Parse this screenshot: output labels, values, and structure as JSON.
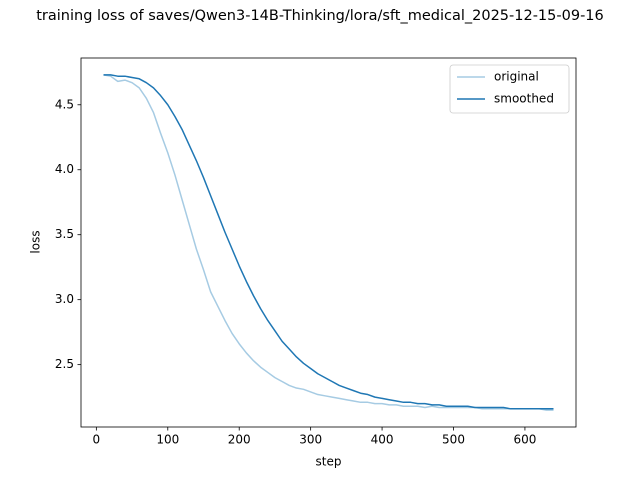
{
  "chart_data": {
    "type": "line",
    "title": "training loss of saves/Qwen3-14B-Thinking/lora/sft_medical_2025-12-15-09-16",
    "xlabel": "step",
    "ylabel": "loss",
    "x": [
      10,
      20,
      30,
      40,
      50,
      60,
      70,
      80,
      90,
      100,
      110,
      120,
      130,
      140,
      150,
      160,
      170,
      180,
      190,
      200,
      210,
      220,
      230,
      240,
      250,
      260,
      270,
      280,
      290,
      300,
      310,
      320,
      330,
      340,
      350,
      360,
      370,
      380,
      390,
      400,
      410,
      420,
      430,
      440,
      450,
      460,
      470,
      480,
      490,
      500,
      510,
      520,
      530,
      540,
      550,
      560,
      570,
      580,
      590,
      600,
      610,
      620,
      630,
      640
    ],
    "series": [
      {
        "name": "original",
        "color": "#a6cbe3",
        "values": [
          4.73,
          4.72,
          4.68,
          4.69,
          4.67,
          4.63,
          4.55,
          4.44,
          4.28,
          4.13,
          3.96,
          3.77,
          3.58,
          3.39,
          3.23,
          3.06,
          2.95,
          2.84,
          2.74,
          2.66,
          2.59,
          2.53,
          2.48,
          2.44,
          2.4,
          2.37,
          2.34,
          2.32,
          2.31,
          2.29,
          2.27,
          2.26,
          2.25,
          2.24,
          2.23,
          2.22,
          2.21,
          2.21,
          2.2,
          2.2,
          2.19,
          2.19,
          2.18,
          2.18,
          2.18,
          2.17,
          2.18,
          2.17,
          2.17,
          2.17,
          2.17,
          2.17,
          2.17,
          2.16,
          2.16,
          2.16,
          2.16,
          2.16,
          2.16,
          2.16,
          2.16,
          2.16,
          2.15,
          2.15
        ]
      },
      {
        "name": "smoothed",
        "color": "#1f77b4",
        "values": [
          4.73,
          4.73,
          4.72,
          4.72,
          4.71,
          4.7,
          4.67,
          4.63,
          4.57,
          4.5,
          4.41,
          4.31,
          4.19,
          4.07,
          3.94,
          3.8,
          3.66,
          3.52,
          3.39,
          3.26,
          3.14,
          3.03,
          2.93,
          2.84,
          2.76,
          2.68,
          2.62,
          2.56,
          2.51,
          2.47,
          2.43,
          2.4,
          2.37,
          2.34,
          2.32,
          2.3,
          2.28,
          2.27,
          2.25,
          2.24,
          2.23,
          2.22,
          2.21,
          2.21,
          2.2,
          2.2,
          2.19,
          2.19,
          2.18,
          2.18,
          2.18,
          2.18,
          2.17,
          2.17,
          2.17,
          2.17,
          2.17,
          2.16,
          2.16,
          2.16,
          2.16,
          2.16,
          2.16,
          2.16
        ]
      }
    ],
    "xlim": [
      -21.5,
      671.5
    ],
    "xticks": [
      0,
      100,
      200,
      300,
      400,
      500,
      600
    ],
    "ylim": [
      2.02,
      4.86
    ],
    "yticks": [
      2.5,
      {
        "value": 3,
        "label": "3.0"
      },
      3.5,
      {
        "value": 4,
        "label": "4.0"
      },
      4.5
    ],
    "grid": false,
    "legend": "upper right"
  }
}
